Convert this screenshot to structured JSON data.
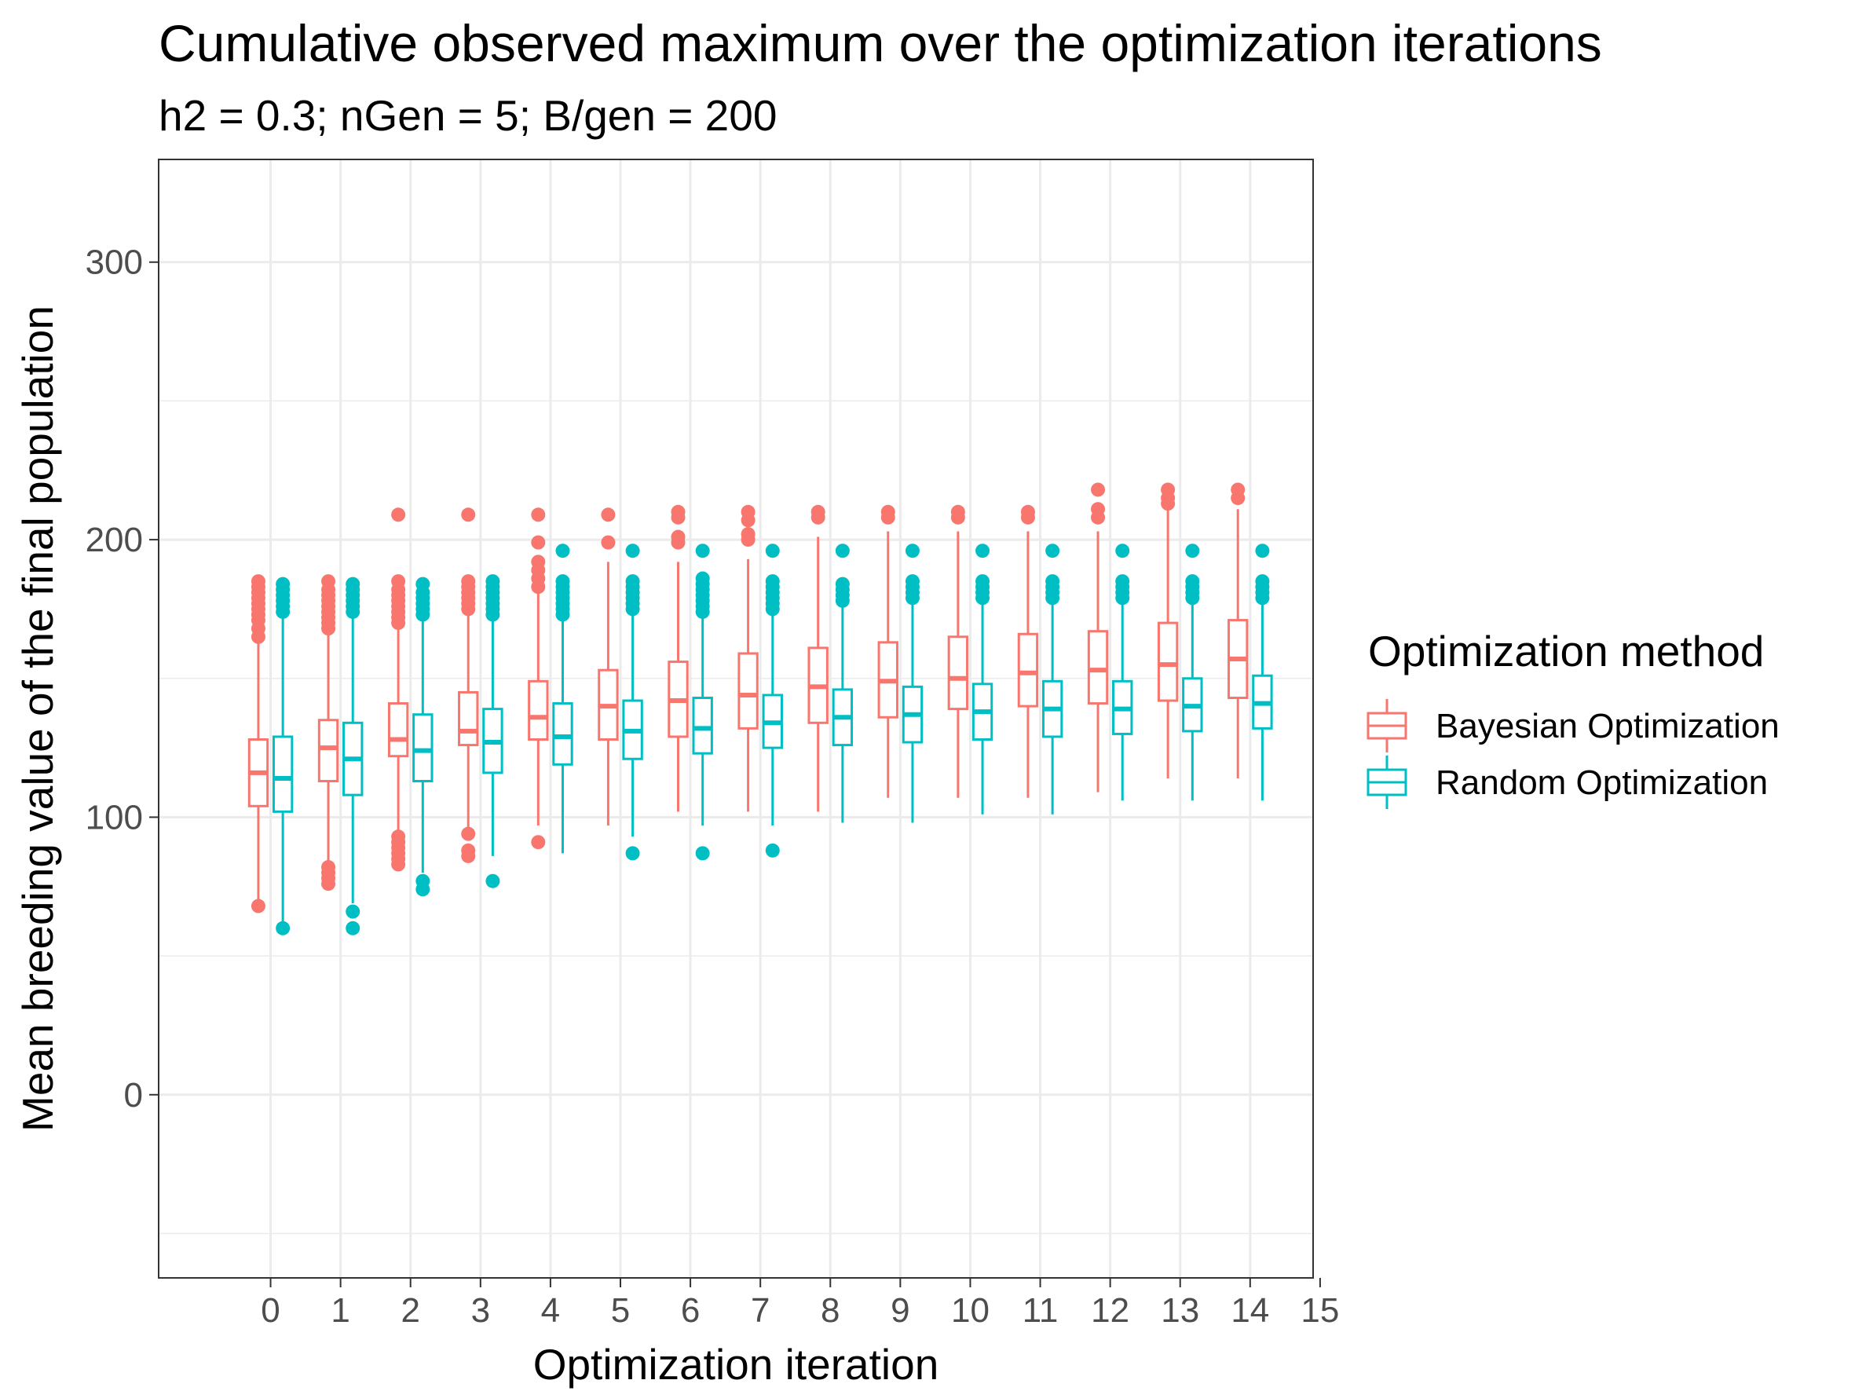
{
  "chart_data": {
    "type": "box",
    "title": "Cumulative observed maximum over the optimization iterations",
    "subtitle": "h2 = 0.3; nGen = 5; B/gen = 200",
    "xlabel": "Optimization iteration",
    "ylabel": "Mean breeding value of the final population",
    "x_ticks": [
      "0",
      "1",
      "2",
      "3",
      "4",
      "5",
      "6",
      "7",
      "8",
      "9",
      "10",
      "11",
      "12",
      "13",
      "14",
      "15"
    ],
    "y_ticks": [
      "0",
      "100",
      "200",
      "300"
    ],
    "xlim": [
      -1.6,
      14.9
    ],
    "ylim": [
      -66,
      337
    ],
    "grid": true,
    "legend_placement": "right",
    "legend_title": "Optimization method",
    "categories": [
      0,
      1,
      2,
      3,
      4,
      5,
      6,
      7,
      8,
      9,
      10,
      11,
      12,
      13,
      14
    ],
    "series": [
      {
        "name": "Bayesian Optimization",
        "color": "#F8766D",
        "boxes": [
          {
            "x": 0,
            "q1": 104,
            "median": 116,
            "q3": 128,
            "whisker_low": 70,
            "whisker_high": 163,
            "outliers": [
              68,
              165,
              168,
              171,
              173,
              175,
              177,
              179,
              181,
              183,
              185
            ]
          },
          {
            "x": 1,
            "q1": 113,
            "median": 125,
            "q3": 135,
            "whisker_low": 83,
            "whisker_high": 166,
            "outliers": [
              76,
              78,
              80,
              82,
              168,
              170,
              172,
              174,
              176,
              178,
              180,
              182,
              185
            ]
          },
          {
            "x": 2,
            "q1": 122,
            "median": 128,
            "q3": 141,
            "whisker_low": 94,
            "whisker_high": 168,
            "outliers": [
              83,
              85,
              87,
              89,
              91,
              93,
              170,
              172,
              174,
              176,
              178,
              180,
              182,
              185,
              209
            ]
          },
          {
            "x": 3,
            "q1": 126,
            "median": 131,
            "q3": 145,
            "whisker_low": 96,
            "whisker_high": 173,
            "outliers": [
              86,
              88,
              94,
              175,
              177,
              179,
              181,
              183,
              185,
              209
            ]
          },
          {
            "x": 4,
            "q1": 128,
            "median": 136,
            "q3": 149,
            "whisker_low": 97,
            "whisker_high": 181,
            "outliers": [
              91,
              183,
              186,
              189,
              192,
              199,
              209
            ]
          },
          {
            "x": 5,
            "q1": 128,
            "median": 140,
            "q3": 153,
            "whisker_low": 97,
            "whisker_high": 192,
            "outliers": [
              199,
              209
            ]
          },
          {
            "x": 6,
            "q1": 129,
            "median": 142,
            "q3": 156,
            "whisker_low": 102,
            "whisker_high": 192,
            "outliers": [
              199,
              201,
              208,
              210
            ]
          },
          {
            "x": 7,
            "q1": 132,
            "median": 144,
            "q3": 159,
            "whisker_low": 102,
            "whisker_high": 193,
            "outliers": [
              200,
              202,
              207,
              210
            ]
          },
          {
            "x": 8,
            "q1": 134,
            "median": 147,
            "q3": 161,
            "whisker_low": 102,
            "whisker_high": 201,
            "outliers": [
              208,
              210
            ]
          },
          {
            "x": 9,
            "q1": 136,
            "median": 149,
            "q3": 163,
            "whisker_low": 107,
            "whisker_high": 203,
            "outliers": [
              208,
              210
            ]
          },
          {
            "x": 10,
            "q1": 139,
            "median": 150,
            "q3": 165,
            "whisker_low": 107,
            "whisker_high": 203,
            "outliers": [
              208,
              210
            ]
          },
          {
            "x": 11,
            "q1": 140,
            "median": 152,
            "q3": 166,
            "whisker_low": 107,
            "whisker_high": 203,
            "outliers": [
              208,
              210
            ]
          },
          {
            "x": 12,
            "q1": 141,
            "median": 153,
            "q3": 167,
            "whisker_low": 109,
            "whisker_high": 203,
            "outliers": [
              208,
              211,
              218
            ]
          },
          {
            "x": 13,
            "q1": 142,
            "median": 155,
            "q3": 170,
            "whisker_low": 114,
            "whisker_high": 211,
            "outliers": [
              213,
              215,
              218
            ]
          },
          {
            "x": 14,
            "q1": 143,
            "median": 157,
            "q3": 171,
            "whisker_low": 114,
            "whisker_high": 211,
            "outliers": [
              215,
              218
            ]
          }
        ]
      },
      {
        "name": "Random Optimization",
        "color": "#00BFC4",
        "boxes": [
          {
            "x": 0,
            "q1": 102,
            "median": 114,
            "q3": 129,
            "whisker_low": 62,
            "whisker_high": 172,
            "outliers": [
              60,
              174,
              176,
              178,
              180,
              182,
              184
            ]
          },
          {
            "x": 1,
            "q1": 108,
            "median": 121,
            "q3": 134,
            "whisker_low": 69,
            "whisker_high": 173,
            "outliers": [
              60,
              66,
              174,
              176,
              178,
              180,
              182,
              184
            ]
          },
          {
            "x": 2,
            "q1": 113,
            "median": 124,
            "q3": 137,
            "whisker_low": 80,
            "whisker_high": 171,
            "outliers": [
              74,
              77,
              173,
              175,
              177,
              179,
              181,
              184
            ]
          },
          {
            "x": 3,
            "q1": 116,
            "median": 127,
            "q3": 139,
            "whisker_low": 86,
            "whisker_high": 171,
            "outliers": [
              77,
              173,
              175,
              177,
              179,
              181,
              183,
              185
            ]
          },
          {
            "x": 4,
            "q1": 119,
            "median": 129,
            "q3": 141,
            "whisker_low": 87,
            "whisker_high": 171,
            "outliers": [
              173,
              175,
              177,
              179,
              181,
              183,
              185,
              196
            ]
          },
          {
            "x": 5,
            "q1": 121,
            "median": 131,
            "q3": 142,
            "whisker_low": 93,
            "whisker_high": 173,
            "outliers": [
              87,
              175,
              177,
              179,
              181,
              183,
              185,
              196
            ]
          },
          {
            "x": 6,
            "q1": 123,
            "median": 132,
            "q3": 143,
            "whisker_low": 97,
            "whisker_high": 172,
            "outliers": [
              87,
              174,
              176,
              178,
              180,
              182,
              184,
              186,
              196
            ]
          },
          {
            "x": 7,
            "q1": 125,
            "median": 134,
            "q3": 144,
            "whisker_low": 97,
            "whisker_high": 173,
            "outliers": [
              88,
              175,
              177,
              179,
              181,
              183,
              185,
              196
            ]
          },
          {
            "x": 8,
            "q1": 126,
            "median": 136,
            "q3": 146,
            "whisker_low": 98,
            "whisker_high": 176,
            "outliers": [
              178,
              180,
              182,
              184,
              196
            ]
          },
          {
            "x": 9,
            "q1": 127,
            "median": 137,
            "q3": 147,
            "whisker_low": 98,
            "whisker_high": 177,
            "outliers": [
              179,
              181,
              183,
              185,
              196
            ]
          },
          {
            "x": 10,
            "q1": 128,
            "median": 138,
            "q3": 148,
            "whisker_low": 101,
            "whisker_high": 177,
            "outliers": [
              179,
              181,
              183,
              185,
              196
            ]
          },
          {
            "x": 11,
            "q1": 129,
            "median": 139,
            "q3": 149,
            "whisker_low": 101,
            "whisker_high": 177,
            "outliers": [
              179,
              181,
              183,
              185,
              196
            ]
          },
          {
            "x": 12,
            "q1": 130,
            "median": 139,
            "q3": 149,
            "whisker_low": 106,
            "whisker_high": 177,
            "outliers": [
              179,
              181,
              183,
              185,
              196
            ]
          },
          {
            "x": 13,
            "q1": 131,
            "median": 140,
            "q3": 150,
            "whisker_low": 106,
            "whisker_high": 177,
            "outliers": [
              179,
              181,
              183,
              185,
              196
            ]
          },
          {
            "x": 14,
            "q1": 132,
            "median": 141,
            "q3": 151,
            "whisker_low": 106,
            "whisker_high": 177,
            "outliers": [
              179,
              181,
              183,
              185,
              196
            ]
          }
        ]
      }
    ]
  }
}
